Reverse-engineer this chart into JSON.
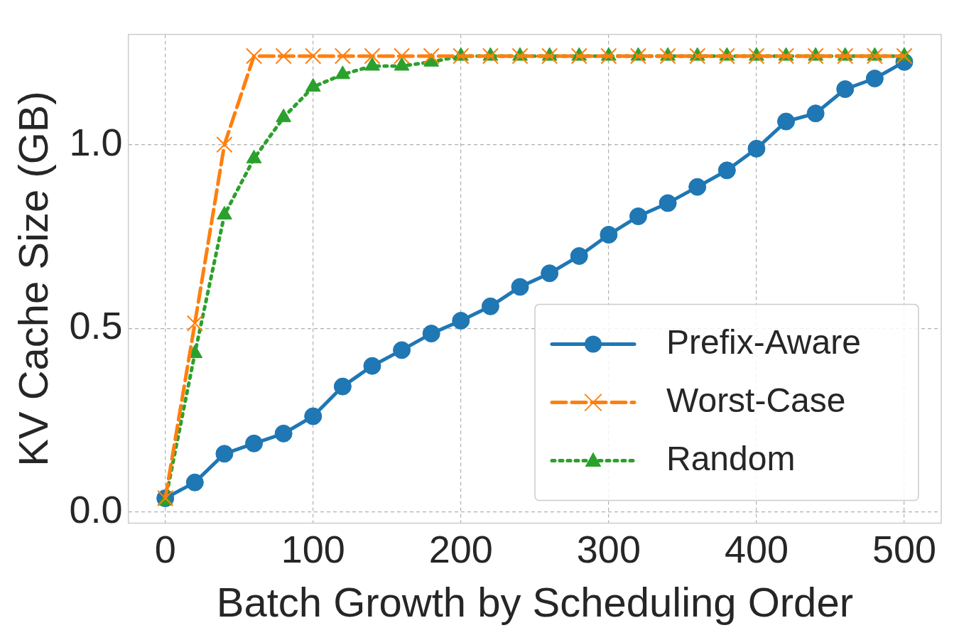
{
  "chart_data": {
    "type": "line",
    "xlabel": "Batch Growth by Scheduling Order",
    "ylabel": "KV Cache Size (GB)",
    "x": [
      0,
      20,
      40,
      60,
      80,
      100,
      120,
      140,
      160,
      180,
      200,
      220,
      240,
      260,
      280,
      300,
      320,
      340,
      360,
      380,
      400,
      420,
      440,
      460,
      480,
      500
    ],
    "series": [
      {
        "name": "Prefix-Aware",
        "color": "#1f77b4",
        "marker": "circle",
        "line_style": "solid",
        "values": [
          0.038,
          0.081,
          0.159,
          0.187,
          0.214,
          0.261,
          0.342,
          0.398,
          0.441,
          0.486,
          0.521,
          0.56,
          0.613,
          0.65,
          0.697,
          0.755,
          0.805,
          0.841,
          0.885,
          0.93,
          0.989,
          1.063,
          1.085,
          1.151,
          1.18,
          1.225
        ]
      },
      {
        "name": "Worst-Case",
        "color": "#ff7f0e",
        "marker": "cross",
        "line_style": "dashed",
        "values": [
          0.038,
          0.514,
          1.0,
          1.241,
          1.241,
          1.241,
          1.241,
          1.241,
          1.241,
          1.241,
          1.241,
          1.241,
          1.241,
          1.241,
          1.241,
          1.241,
          1.241,
          1.241,
          1.241,
          1.241,
          1.241,
          1.241,
          1.241,
          1.241,
          1.241,
          1.241
        ]
      },
      {
        "name": "Random",
        "color": "#2ca02c",
        "marker": "triangle",
        "line_style": "dotted",
        "values": [
          0.031,
          0.432,
          0.809,
          0.962,
          1.074,
          1.157,
          1.191,
          1.214,
          1.214,
          1.225,
          1.241,
          1.241,
          1.241,
          1.241,
          1.241,
          1.241,
          1.241,
          1.241,
          1.241,
          1.241,
          1.241,
          1.241,
          1.241,
          1.241,
          1.241,
          1.241
        ]
      }
    ],
    "xlim": [
      -25,
      525
    ],
    "xticks": [
      0,
      100,
      200,
      300,
      400,
      500
    ],
    "ylim": [
      -0.03,
      1.3
    ],
    "yticks": [
      {
        "value": 0,
        "label": "0.0"
      },
      {
        "value": 0.5,
        "label": "0.5"
      },
      {
        "value": 1,
        "label": "1.0"
      }
    ],
    "grid": true,
    "legend": "bottom right"
  }
}
